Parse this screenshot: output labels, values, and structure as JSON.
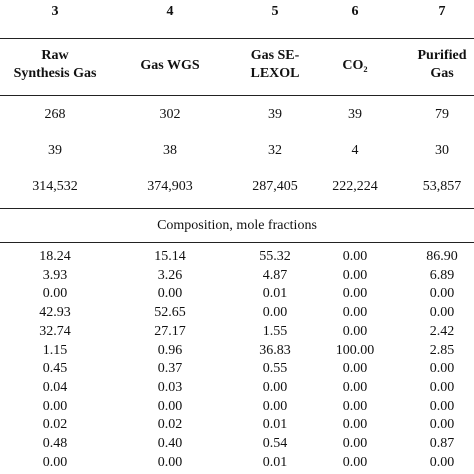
{
  "table": {
    "column_numbers": [
      "3",
      "4",
      "5",
      "6",
      "7"
    ],
    "column_headers": [
      [
        "Raw",
        "Synthesis Gas"
      ],
      [
        "Gas WGS"
      ],
      [
        "Gas SE-",
        "LEXOL"
      ],
      [
        "CO₂"
      ],
      [
        "Purified",
        "Gas"
      ]
    ],
    "stream_rows": [
      [
        "268",
        "302",
        "39",
        "39",
        "79"
      ],
      [
        "39",
        "38",
        "32",
        "4",
        "30"
      ],
      [
        "314,532",
        "374,903",
        "287,405",
        "222,224",
        "53,857"
      ]
    ],
    "section_title": "Composition, mole fractions",
    "composition_rows": [
      [
        "18.24",
        "15.14",
        "55.32",
        "0.00",
        "86.90"
      ],
      [
        "3.93",
        "3.26",
        "4.87",
        "0.00",
        "6.89"
      ],
      [
        "0.00",
        "0.00",
        "0.01",
        "0.00",
        "0.00"
      ],
      [
        "42.93",
        "52.65",
        "0.00",
        "0.00",
        "0.00"
      ],
      [
        "32.74",
        "27.17",
        "1.55",
        "0.00",
        "2.42"
      ],
      [
        "1.15",
        "0.96",
        "36.83",
        "100.00",
        "2.85"
      ],
      [
        "0.45",
        "0.37",
        "0.55",
        "0.00",
        "0.00"
      ],
      [
        "0.04",
        "0.03",
        "0.00",
        "0.00",
        "0.00"
      ],
      [
        "0.00",
        "0.00",
        "0.00",
        "0.00",
        "0.00"
      ],
      [
        "0.02",
        "0.02",
        "0.01",
        "0.00",
        "0.00"
      ],
      [
        "0.48",
        "0.40",
        "0.54",
        "0.00",
        "0.87"
      ],
      [
        "0.00",
        "0.00",
        "0.01",
        "0.00",
        "0.00"
      ]
    ]
  }
}
